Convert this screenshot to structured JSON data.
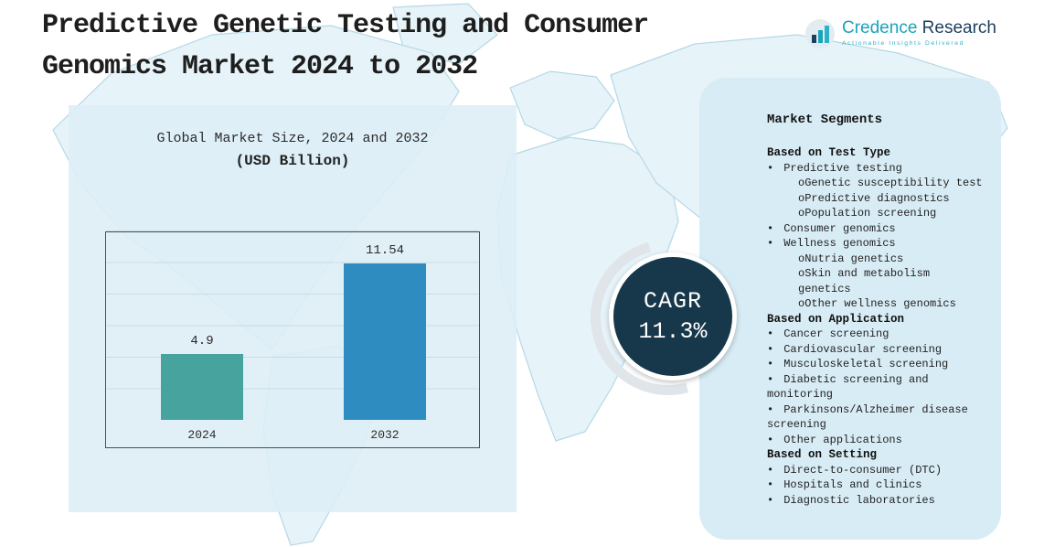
{
  "header": {
    "title_line1": "Predictive Genetic Testing and Consumer",
    "title_line2": "Genomics Market 2024 to 2032"
  },
  "logo": {
    "icon": "bar-chart-icon",
    "name_primary": "Credence",
    "name_secondary": "Research",
    "tagline": "Actionable Insights Delivered"
  },
  "chart_data": {
    "type": "bar",
    "title": "Global Market Size, 2024 and 2032",
    "subtitle": "(USD Billion)",
    "categories": [
      "2024",
      "2032"
    ],
    "values": [
      4.9,
      11.54
    ],
    "labels": [
      "4.9",
      "11.54"
    ],
    "ylabel": "USD Billion",
    "ylim": [
      0,
      14
    ],
    "grid": true,
    "legend": false,
    "bar_colors": [
      "#47a39d",
      "#2e8cc0"
    ]
  },
  "cagr": {
    "label": "CAGR",
    "value": "11.3%"
  },
  "segments": {
    "heading": "Market Segments",
    "sections": [
      {
        "title": "Based on Test Type",
        "items": [
          {
            "marker": "•",
            "text": "Predictive testing"
          },
          {
            "marker": "o",
            "text": "Genetic susceptibility test",
            "sub": true
          },
          {
            "marker": "o",
            "text": "Predictive diagnostics",
            "sub": true
          },
          {
            "marker": "o",
            "text": "Population screening",
            "sub": true
          },
          {
            "marker": "•",
            "text": "Consumer genomics"
          },
          {
            "marker": "•",
            "text": "Wellness genomics"
          },
          {
            "marker": "o",
            "text": "Nutria genetics",
            "sub": true
          },
          {
            "marker": "o",
            "text": "Skin and metabolism genetics",
            "sub": true
          },
          {
            "marker": "o",
            "text": "Other wellness genomics",
            "sub": true
          }
        ]
      },
      {
        "title": "Based on Application",
        "items": [
          {
            "marker": "•",
            "text": "Cancer screening"
          },
          {
            "marker": "•",
            "text": "Cardiovascular screening"
          },
          {
            "marker": "•",
            "text": "Musculoskeletal screening"
          },
          {
            "marker": "•",
            "text": "Diabetic screening and monitoring"
          },
          {
            "marker": "•",
            "text": "Parkinsons/Alzheimer disease screening"
          },
          {
            "marker": "•",
            "text": "Other applications"
          }
        ]
      },
      {
        "title": "Based on Setting",
        "items": [
          {
            "marker": "•",
            "text": "Direct-to-consumer (DTC)"
          },
          {
            "marker": "•",
            "text": "Hospitals and clinics"
          },
          {
            "marker": "•",
            "text": "Diagnostic laboratories"
          }
        ]
      }
    ]
  }
}
